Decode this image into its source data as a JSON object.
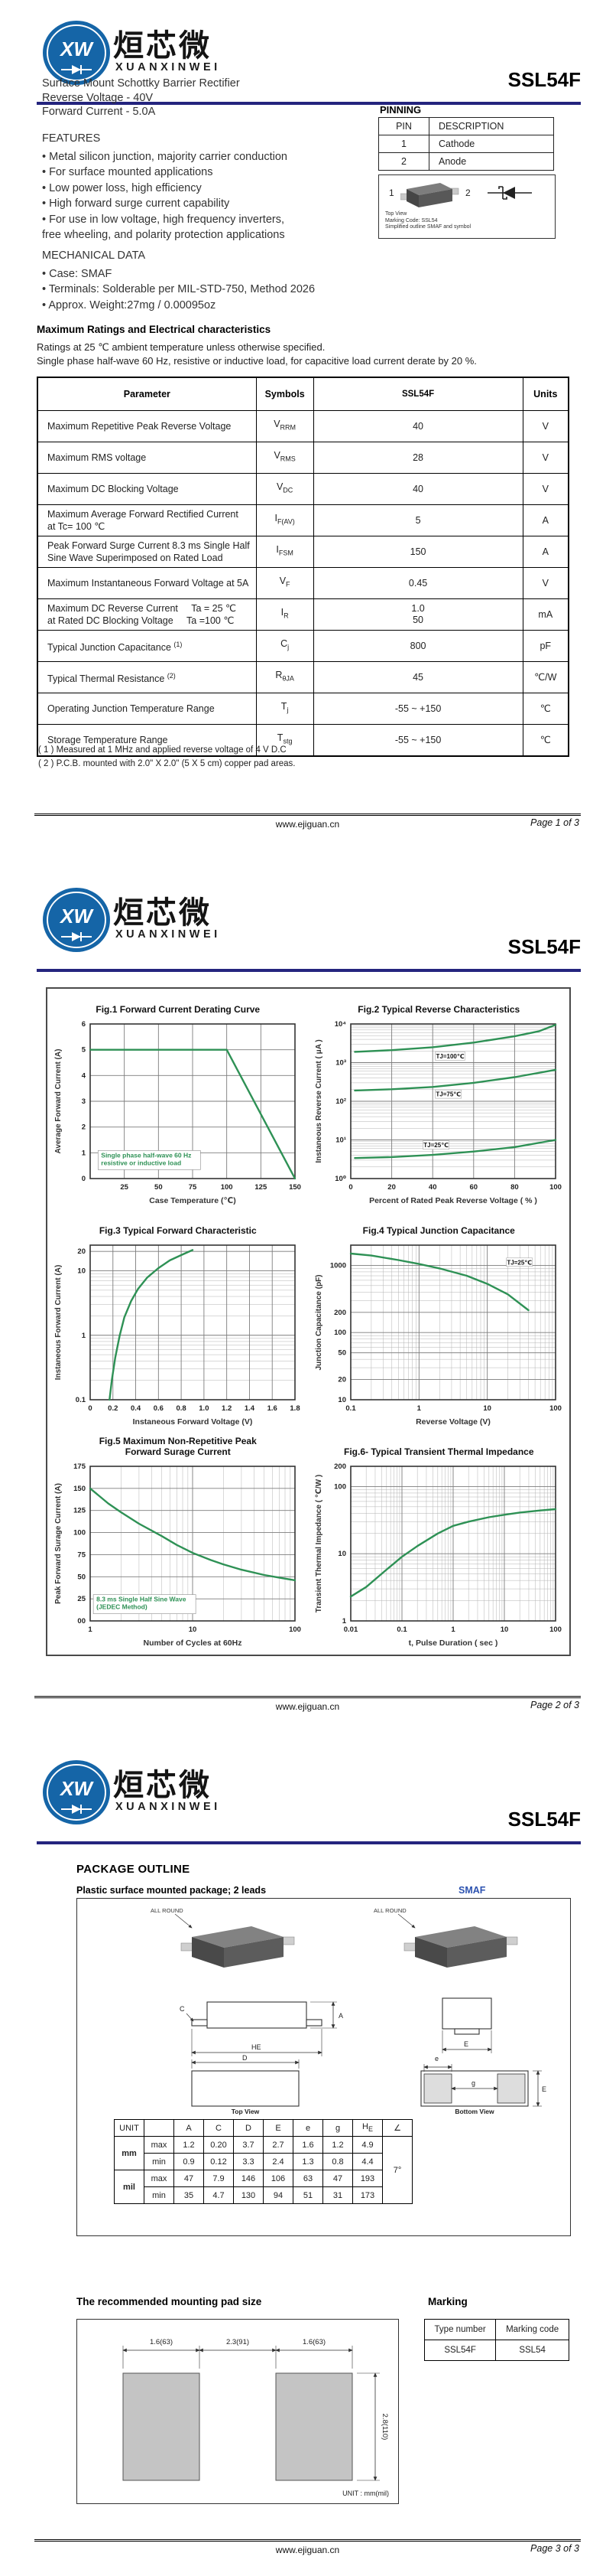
{
  "brand": {
    "logo_cn": "烜芯微",
    "logo_en": "XUANXINWEI",
    "logo_monogram": "XW",
    "part_number": "SSL54F",
    "website": "www.ejiguan.cn",
    "accent_navy": "#24247e",
    "logo_blue": "#1565a7",
    "curve_green": "#2e9155",
    "smaf_blue": "#2d53b0"
  },
  "page1": {
    "description_lines": [
      "Surface Mount Schottky Barrier Rectifier",
      "Reverse Voltage - 40V",
      "Forward Current - 5.0A"
    ],
    "features": {
      "heading": "FEATURES",
      "items": [
        "Metal silicon junction, majority carrier conduction",
        "For surface mounted applications",
        "Low power loss, high efficiency",
        "High forward surge current capability",
        "For use in low voltage, high frequency inverters,\nfree wheeling, and polarity protection applications"
      ]
    },
    "mechanical": {
      "heading": "MECHANICAL DATA",
      "items": [
        "Case: SMAF",
        "Terminals: Solderable per MIL-STD-750, Method 2026",
        "Approx. Weight:27mg /  0.00095oz"
      ]
    },
    "pinning": {
      "heading": "PINNING",
      "headers": [
        "PIN",
        "DESCRIPTION"
      ],
      "rows": [
        [
          "1",
          "Cathode"
        ],
        [
          "2",
          "Anode"
        ]
      ],
      "pin_left": "1",
      "pin_right": "2",
      "caption_lines": [
        "Top View",
        "Marking Code: SSL54",
        "Simplified outline SMAF and symbol"
      ]
    },
    "ratings": {
      "heading": "Maximum Ratings and Electrical characteristics",
      "notes": [
        "Ratings at 25 ℃ ambient temperature unless otherwise specified.",
        "Single phase half-wave 60 Hz, resistive or inductive load, for capacitive load current derate by 20 %."
      ],
      "headers": [
        "Parameter",
        "Symbols",
        "SSL54F",
        "Units"
      ],
      "rows": [
        {
          "param": "Maximum Repetitive Peak Reverse Voltage",
          "sym": "V",
          "sub": "RRM",
          "value": "40",
          "unit": "V"
        },
        {
          "param": "Maximum RMS voltage",
          "sym": "V",
          "sub": "RMS",
          "value": "28",
          "unit": "V"
        },
        {
          "param": "Maximum DC Blocking Voltage",
          "sym": "V",
          "sub": "DC",
          "value": "40",
          "unit": "V"
        },
        {
          "param": "Maximum Average Forward Rectified Current\nat Tc= 100 ℃",
          "sym": "I",
          "sub": "F(AV)",
          "value": "5",
          "unit": "A"
        },
        {
          "param": "Peak Forward Surge Current 8.3 ms Single Half\nSine Wave Superimposed on Rated Load",
          "sym": "I",
          "sub": "FSM",
          "value": "150",
          "unit": "A"
        },
        {
          "param": "Maximum Instantaneous Forward Voltage at 5A",
          "sym": "V",
          "sub": "F",
          "value": "0.45",
          "unit": "V"
        },
        {
          "param": "Maximum DC Reverse Current     Ta = 25 ℃\nat Rated DC Blocking Voltage     Ta =100 ℃",
          "sym": "I",
          "sub": "R",
          "value": "1.0\n50",
          "unit": "mA"
        },
        {
          "param": "Typical Junction Capacitance ",
          "sup": "(1)",
          "sym": "C",
          "sub": "j",
          "value": "800",
          "unit": "pF"
        },
        {
          "param": "Typical Thermal Resistance ",
          "sup": "(2)",
          "sym": "R",
          "sub": "θJA",
          "value": "45",
          "unit": "℃/W"
        },
        {
          "param": "Operating Junction Temperature Range",
          "sym": "T",
          "sub": "j",
          "value": "-55 ~ +150",
          "unit": "℃"
        },
        {
          "param": "Storage Temperature Range",
          "sym": "T",
          "sub": "stg",
          "value": "-55 ~ +150",
          "unit": "℃"
        }
      ],
      "footnotes": [
        "( 1 ) Measured at 1 MHz and applied reverse voltage of 4 V D.C",
        "( 2 ) P.C.B. mounted with 2.0\" X 2.0\" (5 X 5 cm) copper pad areas."
      ]
    },
    "footer_page": "Page 1 of 3"
  },
  "chart_data": [
    {
      "id": "fig1",
      "type": "line",
      "title": "Fig.1  Forward Current Derating Curve",
      "xlabel": "Case Temperature (℃)",
      "ylabel": "Average Forward Current (A)",
      "xscale": "linear",
      "yscale": "linear",
      "xlim": [
        0,
        150
      ],
      "ylim": [
        0,
        6
      ],
      "xticks": [
        {
          "v": 25,
          "t": "25"
        },
        {
          "v": 50,
          "t": "50"
        },
        {
          "v": 75,
          "t": "75"
        },
        {
          "v": 100,
          "t": "100"
        },
        {
          "v": 125,
          "t": "125"
        },
        {
          "v": 150,
          "t": "150"
        }
      ],
      "yticks": [
        {
          "v": 0,
          "t": "0"
        },
        {
          "v": 1,
          "t": "1"
        },
        {
          "v": 2,
          "t": "2"
        },
        {
          "v": 3,
          "t": "3"
        },
        {
          "v": 4,
          "t": "4"
        },
        {
          "v": 5,
          "t": "5"
        },
        {
          "v": 6,
          "t": "6"
        }
      ],
      "series": [
        {
          "name": "IF(AV) vs Tc",
          "points": [
            [
              0,
              5
            ],
            [
              100,
              5
            ],
            [
              150,
              0
            ]
          ]
        }
      ],
      "notes": [
        {
          "x": 8,
          "y": 0.82,
          "boxed": true,
          "lines": [
            "Single phase half-wave 60 Hz",
            "resistive or inductive load"
          ]
        }
      ]
    },
    {
      "id": "fig2",
      "type": "line",
      "title": "Fig.2  Typical Reverse Characteristics",
      "xlabel": "Percent of Rated Peak Reverse Voltage ( % )",
      "ylabel": "Instaneous Reverse Current ( μA )",
      "xscale": "linear",
      "yscale": "log",
      "xlim": [
        0,
        100
      ],
      "ylim": [
        1,
        10000
      ],
      "xticks": [
        {
          "v": 0,
          "t": "0"
        },
        {
          "v": 20,
          "t": "20"
        },
        {
          "v": 40,
          "t": "40"
        },
        {
          "v": 60,
          "t": "60"
        },
        {
          "v": 80,
          "t": "80"
        },
        {
          "v": 100,
          "t": "100"
        }
      ],
      "yticks": [
        {
          "v": 1,
          "t": "10⁰"
        },
        {
          "v": 10,
          "t": "10¹"
        },
        {
          "v": 100,
          "t": "10²"
        },
        {
          "v": 1000,
          "t": "10³"
        },
        {
          "v": 10000,
          "t": "10⁴"
        }
      ],
      "series": [
        {
          "name": "TJ=100℃",
          "points": [
            [
              2,
              1900
            ],
            [
              20,
              2100
            ],
            [
              40,
              2500
            ],
            [
              60,
              3300
            ],
            [
              80,
              4800
            ],
            [
              92,
              6500
            ],
            [
              100,
              9500
            ]
          ],
          "label": {
            "x": 42,
            "y": 1450,
            "t": "TJ=100℃"
          }
        },
        {
          "name": "TJ=75℃",
          "points": [
            [
              2,
              190
            ],
            [
              20,
              205
            ],
            [
              40,
              235
            ],
            [
              60,
              300
            ],
            [
              80,
              420
            ],
            [
              100,
              650
            ]
          ],
          "label": {
            "x": 42,
            "y": 150,
            "t": "TJ=75℃"
          }
        },
        {
          "name": "TJ=25℃",
          "points": [
            [
              2,
              3.4
            ],
            [
              20,
              3.6
            ],
            [
              40,
              4.1
            ],
            [
              60,
              5.0
            ],
            [
              80,
              6.5
            ],
            [
              100,
              10
            ]
          ],
          "label": {
            "x": 36,
            "y": 7.2,
            "t": "TJ=25℃"
          }
        }
      ]
    },
    {
      "id": "fig3",
      "type": "line",
      "title": "Fig.3  Typical Forward Characteristic",
      "xlabel": "Instaneous Forward Voltage (V)",
      "ylabel": "Instaneous Forward Current  (A)",
      "xscale": "linear",
      "yscale": "log",
      "xlim": [
        0,
        1.8
      ],
      "ylim": [
        0.1,
        25
      ],
      "xticks": [
        {
          "v": 0,
          "t": "0"
        },
        {
          "v": 0.2,
          "t": "0.2"
        },
        {
          "v": 0.4,
          "t": "0.4"
        },
        {
          "v": 0.6,
          "t": "0.6"
        },
        {
          "v": 0.8,
          "t": "0.8"
        },
        {
          "v": 1.0,
          "t": "1.0"
        },
        {
          "v": 1.2,
          "t": "1.2"
        },
        {
          "v": 1.4,
          "t": "1.4"
        },
        {
          "v": 1.6,
          "t": "1.6"
        },
        {
          "v": 1.8,
          "t": "1.8"
        }
      ],
      "yticks": [
        {
          "v": 0.1,
          "t": "0.1"
        },
        {
          "v": 1,
          "t": "1"
        },
        {
          "v": 10,
          "t": "10"
        },
        {
          "v": 20,
          "t": "20"
        }
      ],
      "series": [
        {
          "name": "IF vs VF",
          "points": [
            [
              0.17,
              0.1
            ],
            [
              0.19,
              0.2
            ],
            [
              0.22,
              0.45
            ],
            [
              0.26,
              1.0
            ],
            [
              0.3,
              1.9
            ],
            [
              0.36,
              3.4
            ],
            [
              0.42,
              5.2
            ],
            [
              0.5,
              7.8
            ],
            [
              0.6,
              11
            ],
            [
              0.7,
              14.5
            ],
            [
              0.8,
              17.5
            ],
            [
              0.9,
              21
            ]
          ]
        }
      ]
    },
    {
      "id": "fig4",
      "type": "line",
      "title": "Fig.4  Typical Junction Capacitance",
      "xlabel": "Reverse  Voltage (V)",
      "ylabel": "Junction Capacitance (pF)",
      "xscale": "log",
      "yscale": "log",
      "xlim": [
        0.1,
        100
      ],
      "ylim": [
        10,
        2000
      ],
      "xticks": [
        {
          "v": 0.1,
          "t": "0.1"
        },
        {
          "v": 1,
          "t": "1"
        },
        {
          "v": 10,
          "t": "10"
        },
        {
          "v": 100,
          "t": "100"
        }
      ],
      "yticks": [
        {
          "v": 10,
          "t": "10"
        },
        {
          "v": 20,
          "t": "20"
        },
        {
          "v": 50,
          "t": "50"
        },
        {
          "v": 100,
          "t": "100"
        },
        {
          "v": 200,
          "t": "200"
        },
        {
          "v": 1000,
          "t": "1000"
        }
      ],
      "series": [
        {
          "name": "Cj vs VR",
          "points": [
            [
              0.1,
              1500
            ],
            [
              0.2,
              1400
            ],
            [
              0.5,
              1200
            ],
            [
              1,
              1050
            ],
            [
              2,
              900
            ],
            [
              5,
              700
            ],
            [
              10,
              530
            ],
            [
              20,
              370
            ],
            [
              40,
              215
            ]
          ],
          "label": {
            "x": 20,
            "y": 1100,
            "t": "TJ=25℃"
          }
        }
      ]
    },
    {
      "id": "fig5",
      "type": "line",
      "title": "Fig.5  Maximum Non-Repetitive Peak\nForward Surage Current",
      "xlabel": "Number of Cycles at 60Hz",
      "ylabel": "Peak Forward Surage Current (A)",
      "xscale": "log",
      "yscale": "linear",
      "xlim": [
        1,
        100
      ],
      "ylim": [
        0,
        175
      ],
      "xticks": [
        {
          "v": 1,
          "t": "1"
        },
        {
          "v": 10,
          "t": "10"
        },
        {
          "v": 100,
          "t": "100"
        }
      ],
      "yticks": [
        {
          "v": 0,
          "t": "00"
        },
        {
          "v": 25,
          "t": "25"
        },
        {
          "v": 50,
          "t": "50"
        },
        {
          "v": 75,
          "t": "75"
        },
        {
          "v": 100,
          "t": "100"
        },
        {
          "v": 125,
          "t": "125"
        },
        {
          "v": 150,
          "t": "150"
        },
        {
          "v": 175,
          "t": "175"
        }
      ],
      "series": [
        {
          "name": "IFSM vs cycles",
          "points": [
            [
              1,
              150
            ],
            [
              1.5,
              133
            ],
            [
              2,
              123
            ],
            [
              3,
              110
            ],
            [
              5,
              96
            ],
            [
              7,
              86
            ],
            [
              10,
              77
            ],
            [
              15,
              69
            ],
            [
              20,
              64
            ],
            [
              30,
              58
            ],
            [
              50,
              52
            ],
            [
              70,
              49
            ],
            [
              100,
              46
            ]
          ]
        }
      ],
      "notes": [
        {
          "x": 1.15,
          "y": 22,
          "boxed": true,
          "lines": [
            "8.3 ms Single Half Sine Wave",
            "(JEDEC Method)"
          ]
        }
      ]
    },
    {
      "id": "fig6",
      "type": "line",
      "title": "Fig.6- Typical Transient Thermal Impedance",
      "xlabel": "t, Pulse Duration ( sec )",
      "ylabel": "Transient Thermal Impedance ( ℃/W )",
      "xscale": "log",
      "yscale": "log",
      "xlim": [
        0.01,
        100
      ],
      "ylim": [
        1,
        200
      ],
      "xticks": [
        {
          "v": 0.01,
          "t": "0.01"
        },
        {
          "v": 0.1,
          "t": "0.1"
        },
        {
          "v": 1,
          "t": "1"
        },
        {
          "v": 10,
          "t": "10"
        },
        {
          "v": 100,
          "t": "100"
        }
      ],
      "yticks": [
        {
          "v": 1,
          "t": "1"
        },
        {
          "v": 10,
          "t": "10"
        },
        {
          "v": 100,
          "t": "100"
        },
        {
          "v": 200,
          "t": "200"
        }
      ],
      "series": [
        {
          "name": "Zth vs t",
          "points": [
            [
              0.01,
              2.3
            ],
            [
              0.02,
              3.2
            ],
            [
              0.05,
              5.8
            ],
            [
              0.1,
              9
            ],
            [
              0.2,
              13
            ],
            [
              0.5,
              20
            ],
            [
              1,
              26
            ],
            [
              2,
              30
            ],
            [
              5,
              35
            ],
            [
              10,
              38
            ],
            [
              20,
              41
            ],
            [
              50,
              44
            ],
            [
              100,
              46
            ]
          ]
        }
      ]
    }
  ],
  "page2": {
    "footer_page": "Page 2 of 3"
  },
  "page3": {
    "heading": "PACKAGE OUTLINE",
    "subheading": "Plastic surface mounted package; 2 leads",
    "package_name": "SMAF",
    "outline": {
      "all_round": "ALL ROUND",
      "top_view": "Top View",
      "bottom_view": "Bottom View",
      "dim_a": "A",
      "dim_c": "C",
      "dim_d": "D",
      "dim_e": "E",
      "dim_e_low": "e",
      "dim_g": "g",
      "dim_he": "HE"
    },
    "dim_table": {
      "unit_header": "UNIT",
      "col_headers": [
        "A",
        "C",
        "D",
        "E",
        "e",
        "g",
        "HE",
        "∠"
      ],
      "unit_groups": [
        {
          "unit": "mm",
          "rows": [
            {
              "label": "max",
              "vals": [
                "1.2",
                "0.20",
                "3.7",
                "2.7",
                "1.6",
                "1.2",
                "4.9"
              ]
            },
            {
              "label": "min",
              "vals": [
                "0.9",
                "0.12",
                "3.3",
                "2.4",
                "1.3",
                "0.8",
                "4.4"
              ]
            }
          ]
        },
        {
          "unit": "mil",
          "rows": [
            {
              "label": "max",
              "vals": [
                "47",
                "7.9",
                "146",
                "106",
                "63",
                "47",
                "193"
              ]
            },
            {
              "label": "min",
              "vals": [
                "35",
                "4.7",
                "130",
                "94",
                "51",
                "31",
                "173"
              ]
            }
          ]
        }
      ],
      "angle_value": "7°"
    },
    "pad": {
      "heading": "The recommended mounting pad size",
      "top_dims": [
        "1.6(63)",
        "2.3(91)",
        "1.6(63)"
      ],
      "right_dim": "2.8(110)",
      "unit_note": "UNIT : mm(mil)"
    },
    "marking": {
      "heading": "Marking",
      "headers": [
        "Type number",
        "Marking code"
      ],
      "row": [
        "SSL54F",
        "SSL54"
      ]
    },
    "footer_page": "Page 3 of 3"
  }
}
